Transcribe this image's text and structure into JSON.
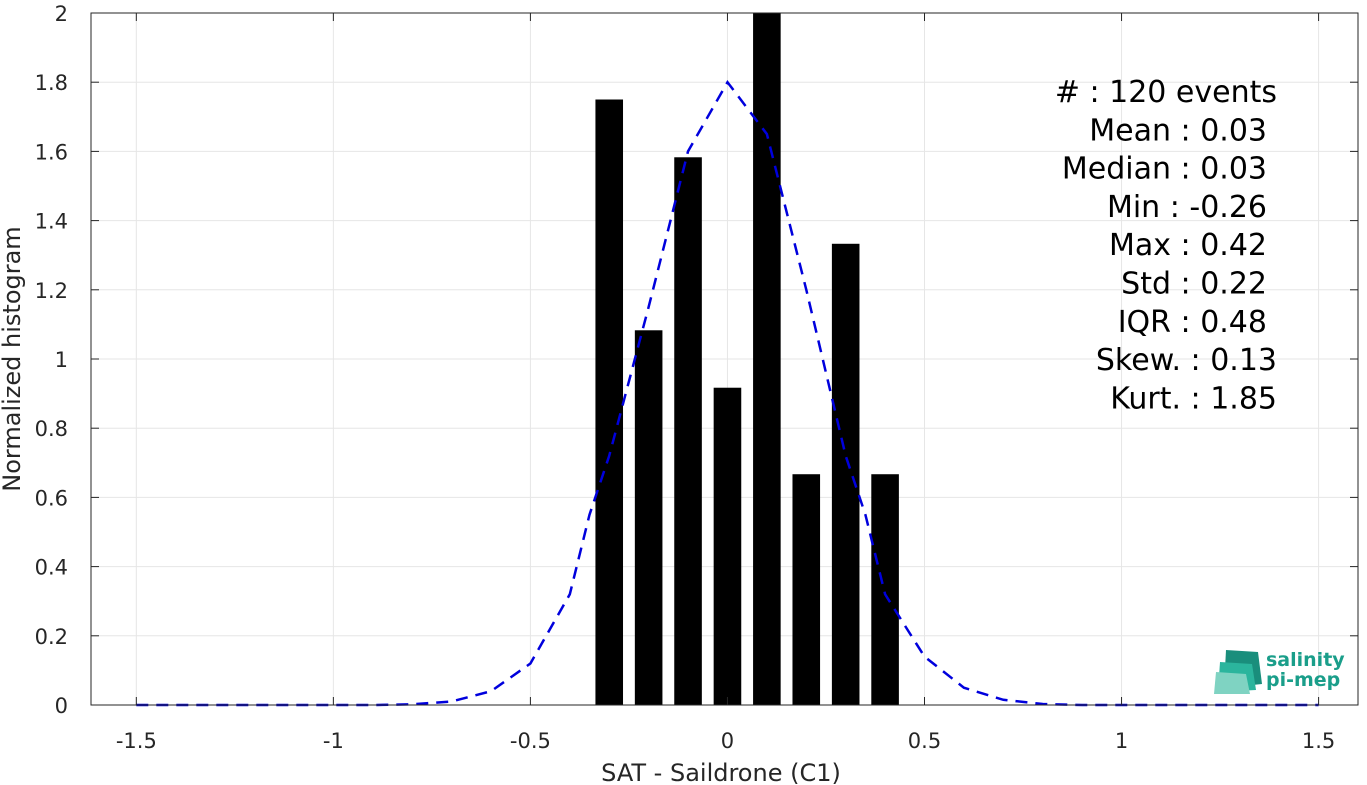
{
  "chart_data": {
    "type": "bar",
    "title": "",
    "xlabel": "SAT - Saildrone (C1)",
    "ylabel": "Normalized histogram",
    "xlim": [
      -1.615,
      1.6
    ],
    "ylim": [
      0,
      2
    ],
    "xticks": [
      -1.5,
      -1,
      -0.5,
      0,
      0.5,
      1,
      1.5
    ],
    "xtick_labels": [
      "-1.5",
      "-1",
      "-0.5",
      "0",
      "0.5",
      "1",
      "1.5"
    ],
    "yticks": [
      0,
      0.2,
      0.4,
      0.6,
      0.8,
      1,
      1.2,
      1.4,
      1.6,
      1.8,
      2
    ],
    "ytick_labels": [
      "0",
      "0.2",
      "0.4",
      "0.6",
      "0.8",
      "1",
      "1.2",
      "1.4",
      "1.6",
      "1.8",
      "2"
    ],
    "grid": true,
    "bar_width": 0.07,
    "bars": [
      {
        "x": -0.3,
        "y": 1.75
      },
      {
        "x": -0.2,
        "y": 1.083
      },
      {
        "x": -0.1,
        "y": 1.583
      },
      {
        "x": 0.0,
        "y": 0.917
      },
      {
        "x": 0.1,
        "y": 2.0
      },
      {
        "x": 0.2,
        "y": 0.667
      },
      {
        "x": 0.3,
        "y": 1.333
      },
      {
        "x": 0.4,
        "y": 0.667
      }
    ],
    "fit_curve": {
      "style": "dashed",
      "color": "#0000dd",
      "x": [
        -1.5,
        -1.4,
        -1.3,
        -1.2,
        -1.1,
        -1.0,
        -0.9,
        -0.8,
        -0.7,
        -0.6,
        -0.5,
        -0.4,
        -0.35,
        -0.3,
        -0.2,
        -0.1,
        0.0,
        0.1,
        0.2,
        0.3,
        0.35,
        0.4,
        0.5,
        0.6,
        0.7,
        0.8,
        0.9,
        1.0,
        1.1,
        1.2,
        1.3,
        1.4,
        1.5
      ],
      "y": [
        0,
        0,
        0,
        0,
        0,
        0,
        0,
        0.002,
        0.01,
        0.04,
        0.12,
        0.32,
        0.55,
        0.72,
        1.15,
        1.6,
        1.8,
        1.65,
        1.2,
        0.72,
        0.55,
        0.32,
        0.14,
        0.05,
        0.015,
        0.003,
        0,
        0,
        0,
        0,
        0,
        0,
        0
      ]
    },
    "bar_color": "#000000",
    "stats": [
      {
        "label": "#  : 120 events",
        "anchor": "right-wide"
      },
      {
        "label": "Mean : 0.03",
        "anchor": "right"
      },
      {
        "label": "Median : 0.03",
        "anchor": "right"
      },
      {
        "label": "Min : -0.26",
        "anchor": "right"
      },
      {
        "label": "Max : 0.42",
        "anchor": "right"
      },
      {
        "label": "Std : 0.22",
        "anchor": "right"
      },
      {
        "label": "IQR : 0.48",
        "anchor": "right"
      },
      {
        "label": "Skew. : 0.13",
        "anchor": "right-wide"
      },
      {
        "label": "Kurt. : 1.85",
        "anchor": "right-wide"
      }
    ]
  },
  "logo": {
    "line1": "salinity",
    "line2": "pi-mep",
    "color": "#1a9e8a"
  }
}
